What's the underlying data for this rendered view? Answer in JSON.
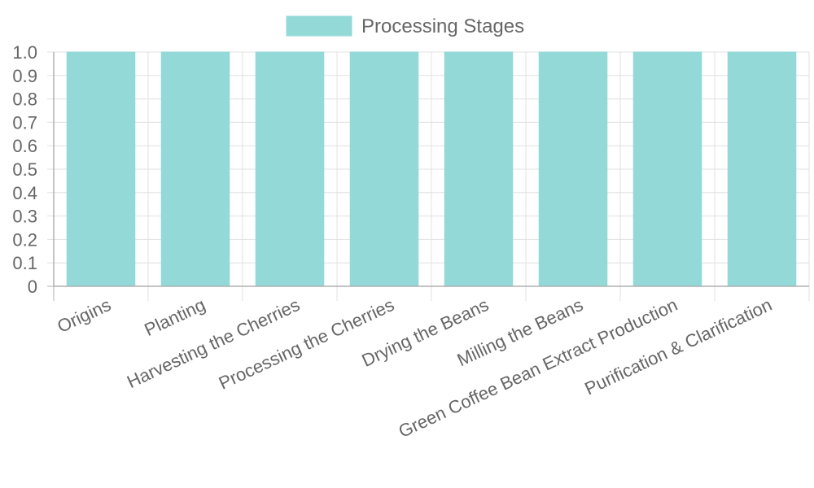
{
  "colors": {
    "bar_fill": "#93d9d8",
    "bar_stroke": "#93d9d8",
    "grid": "#e0e0e0",
    "axis": "#b0b0b0",
    "text": "#666666"
  },
  "chart_data": {
    "type": "bar",
    "title": "",
    "xlabel": "",
    "ylabel": "",
    "categories": [
      "Origins",
      "Planting",
      "Harvesting the Cherries",
      "Processing the Cherries",
      "Drying the Beans",
      "Milling the Beans",
      "Green Coffee Bean Extract Production",
      "Purification & Clarification"
    ],
    "series": [
      {
        "name": "Processing Stages",
        "values": [
          1,
          1,
          1,
          1,
          1,
          1,
          1,
          1
        ]
      }
    ],
    "ylim": [
      0,
      1
    ],
    "yticks": [
      "0",
      "0.1",
      "0.2",
      "0.3",
      "0.4",
      "0.5",
      "0.6",
      "0.7",
      "0.8",
      "0.9",
      "1.0"
    ],
    "grid": true,
    "legend_position": "top-center"
  }
}
